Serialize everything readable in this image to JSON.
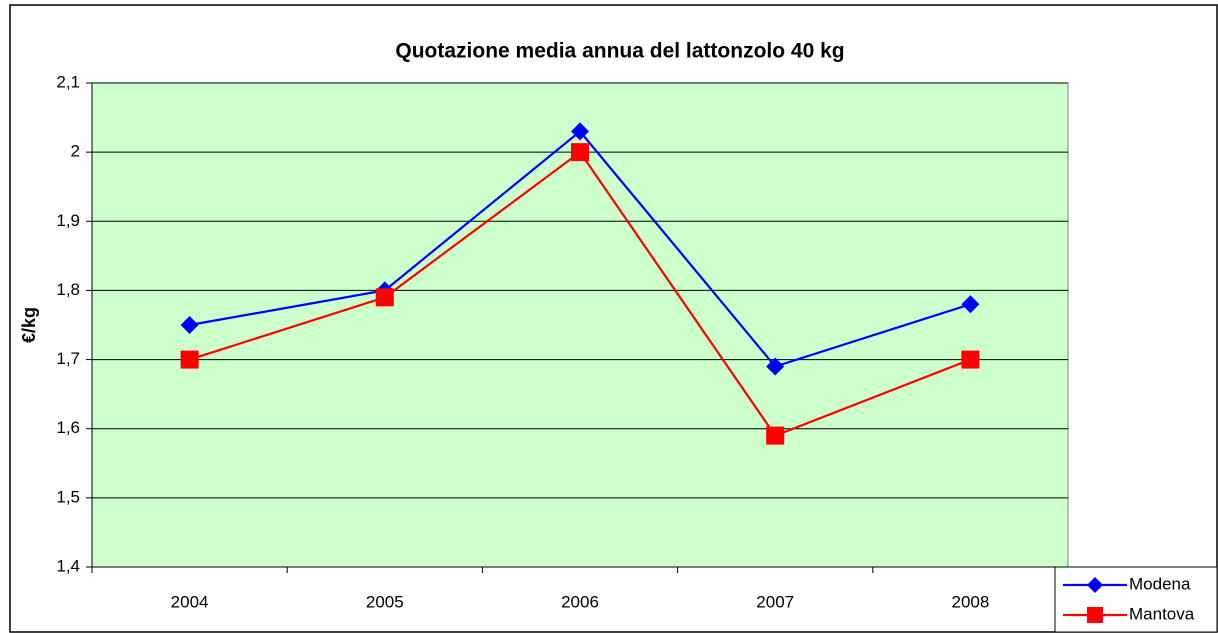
{
  "chart_data": {
    "type": "line",
    "title": "Quotazione media annua del lattonzolo 40 kg",
    "ylabel": "€/kg",
    "categories": [
      "2004",
      "2005",
      "2006",
      "2007",
      "2008"
    ],
    "series": [
      {
        "name": "Modena",
        "color": "#0000ff",
        "marker": "diamond",
        "values": [
          1.75,
          1.8,
          2.03,
          1.69,
          1.78
        ]
      },
      {
        "name": "Mantova",
        "color": "#ff0000",
        "marker": "square",
        "values": [
          1.7,
          1.79,
          2.0,
          1.59,
          1.7
        ]
      }
    ],
    "ylim": [
      1.4,
      2.1
    ],
    "yticks": [
      {
        "value": 1.4,
        "label": "1,4"
      },
      {
        "value": 1.5,
        "label": "1,5"
      },
      {
        "value": 1.6,
        "label": "1,6"
      },
      {
        "value": 1.7,
        "label": "1,7"
      },
      {
        "value": 1.8,
        "label": "1,8"
      },
      {
        "value": 1.9,
        "label": "1,9"
      },
      2,
      {
        "value": 2.1,
        "label": "2,1"
      }
    ],
    "grid": true,
    "plot_background": "#ccffcc",
    "legend_position": "bottom-right"
  }
}
